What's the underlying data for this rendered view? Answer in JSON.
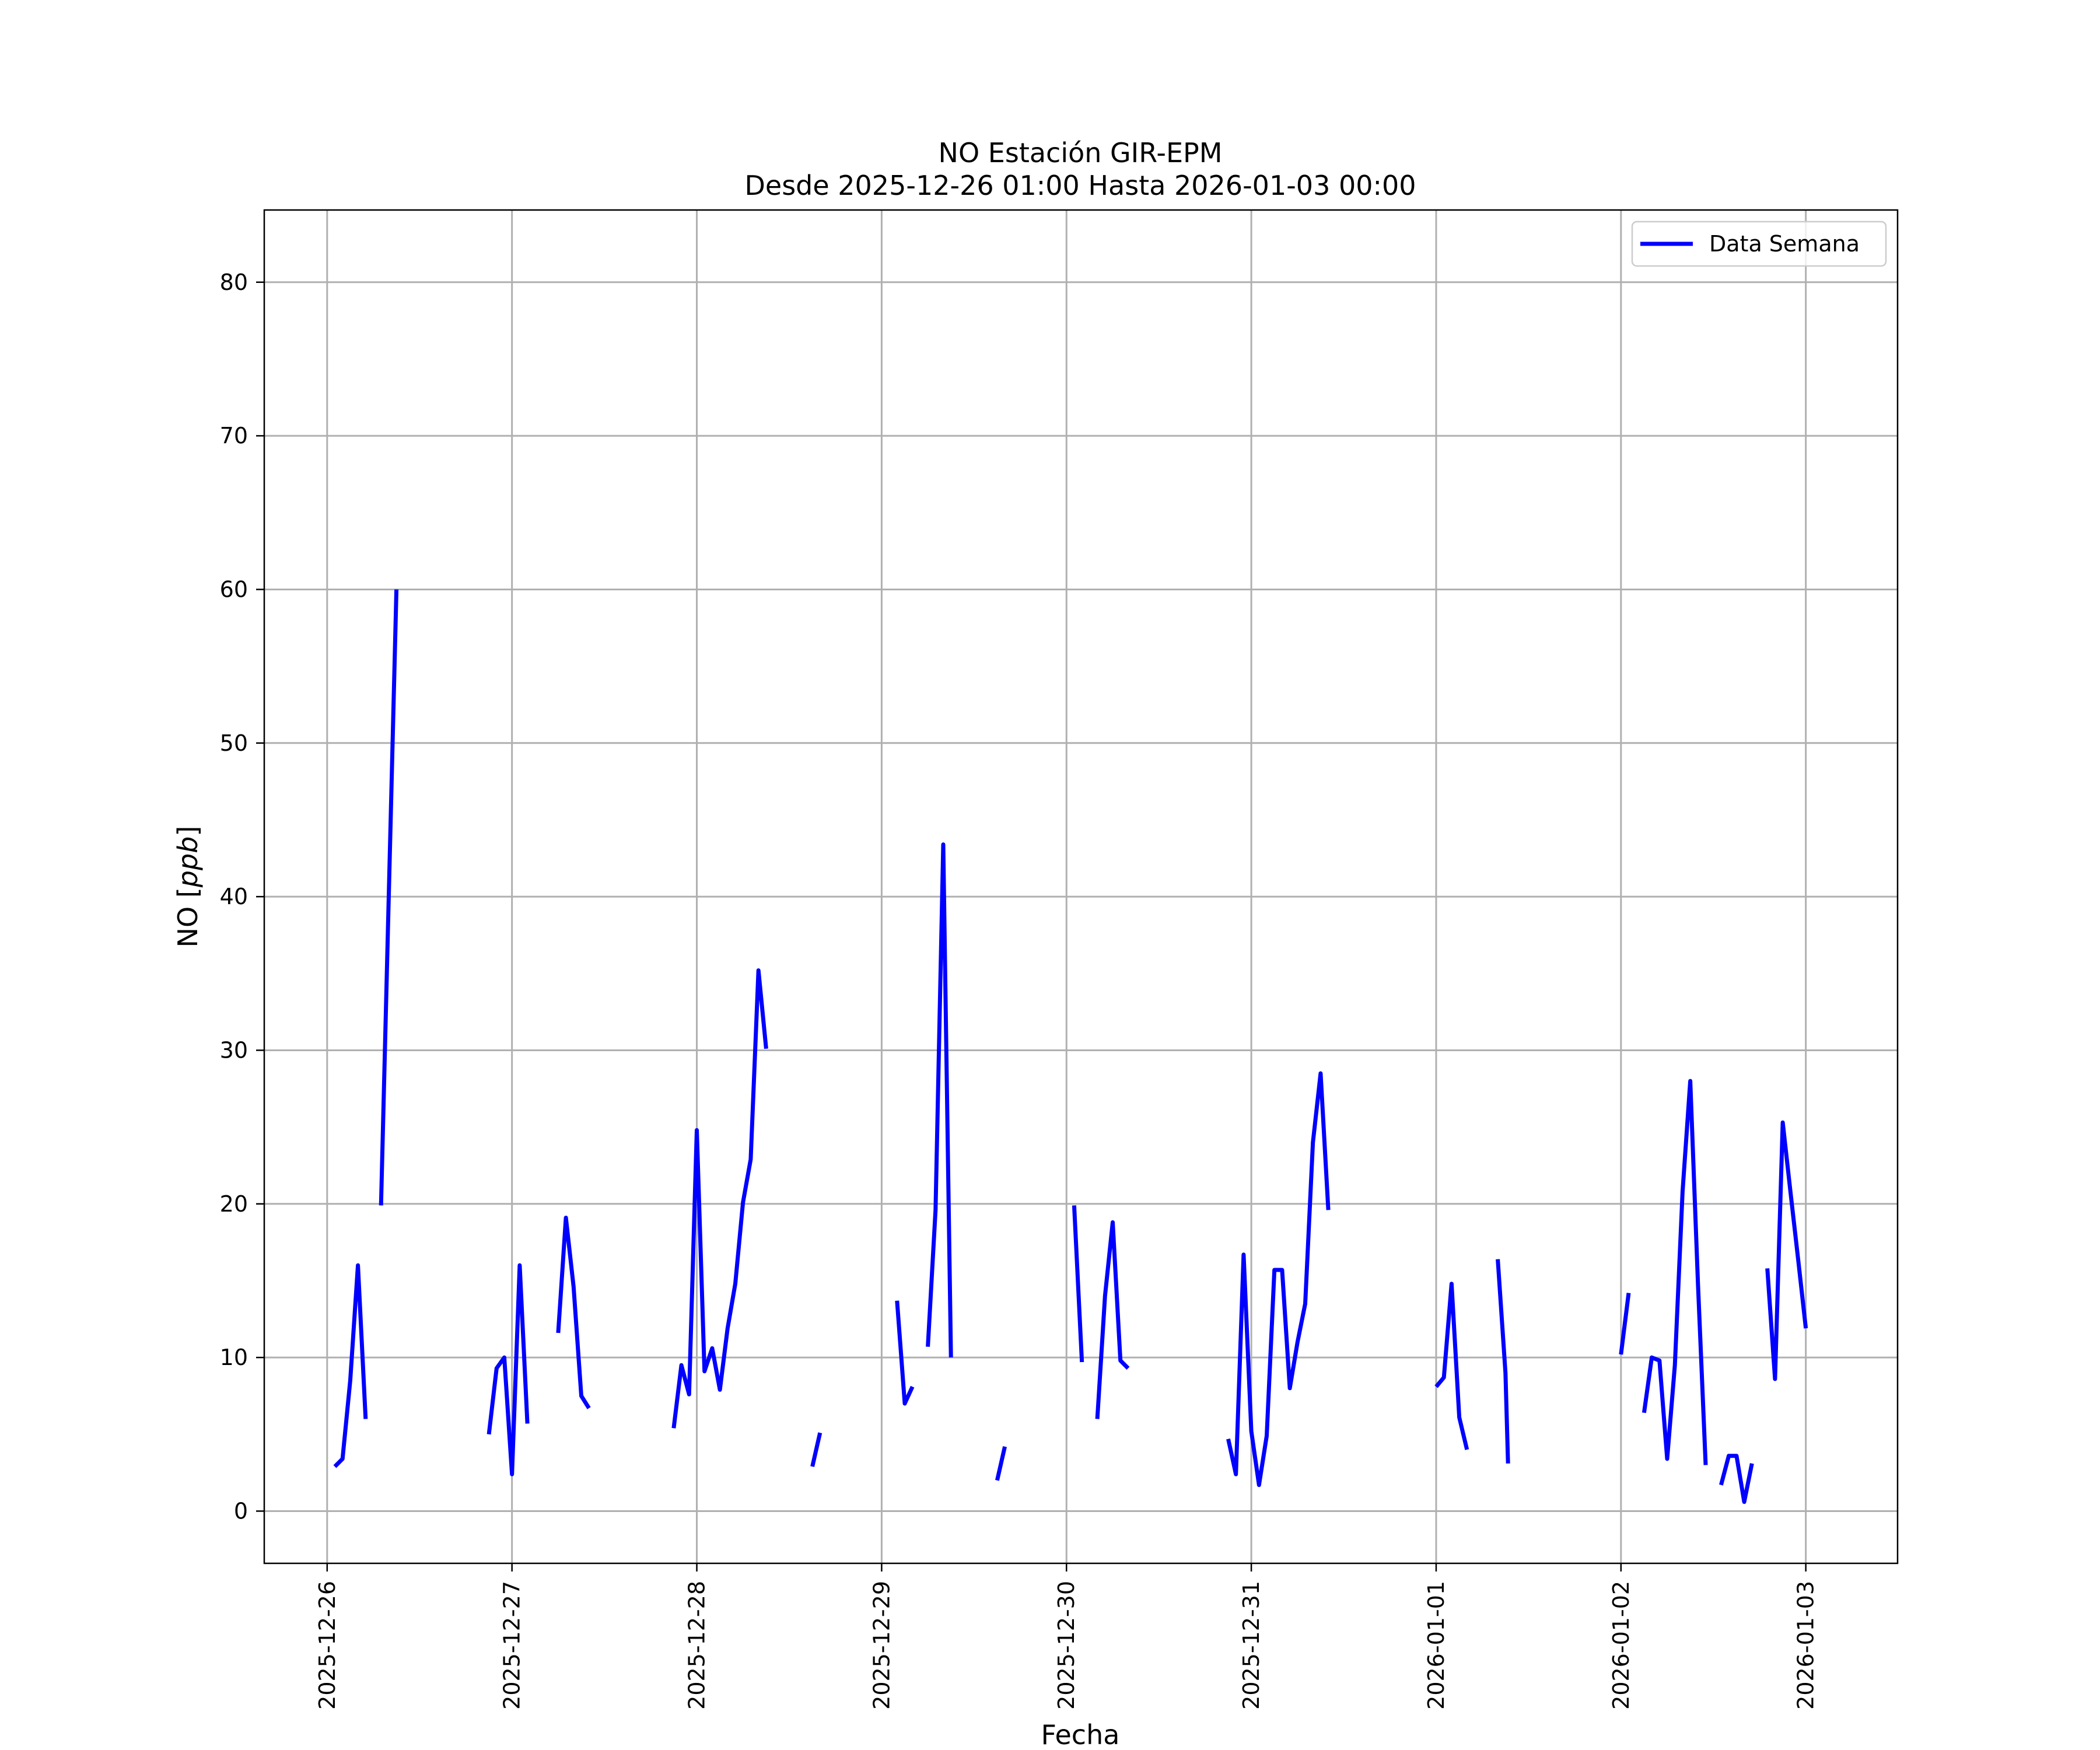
{
  "chart_data": {
    "type": "line",
    "title": "NO Estación GIR-EPM",
    "subtitle": "Desde 2025-12-26 01:00 Hasta 2026-01-03 00:00",
    "xlabel": "Fecha",
    "ylabel": "NO [ppb]",
    "ylabel_prefix": "NO [",
    "ylabel_unit": "ppb",
    "ylabel_suffix": "]",
    "x_start": "2025-12-26",
    "xlim": [
      "2025-12-25 15:50",
      "2026-01-03 11:55"
    ],
    "ylim": [
      -3.4,
      84.7
    ],
    "x_ticks": [
      "2025-12-26",
      "2025-12-27",
      "2025-12-28",
      "2025-12-29",
      "2025-12-30",
      "2025-12-31",
      "2026-01-01",
      "2026-01-02",
      "2026-01-03"
    ],
    "y_ticks": [
      0,
      10,
      20,
      30,
      40,
      50,
      60,
      70,
      80
    ],
    "grid": true,
    "legend": {
      "position": "top-right"
    },
    "colors": {
      "series": "#0000ff",
      "grid": "#b0b0b0",
      "frame": "#000000"
    },
    "series": [
      {
        "name": "Data Semana",
        "segments": [
          [
            [
              "2025-12-26 01:00",
              2.9
            ],
            [
              "2025-12-26 02:00",
              3.4
            ],
            [
              "2025-12-26 03:00",
              8.5
            ],
            [
              "2025-12-26 04:00",
              16.0
            ],
            [
              "2025-12-26 05:00",
              6.0
            ]
          ],
          [
            [
              "2025-12-26 07:00",
              19.9
            ],
            [
              "2025-12-26 09:00",
              60.0
            ]
          ],
          [
            [
              "2025-12-26 21:00",
              5.0
            ],
            [
              "2025-12-26 22:00",
              9.3
            ],
            [
              "2025-12-26 23:00",
              10.0
            ],
            [
              "2025-12-27 00:00",
              2.4
            ],
            [
              "2025-12-27 01:00",
              16.0
            ],
            [
              "2025-12-27 02:00",
              5.7
            ]
          ],
          [
            [
              "2025-12-27 06:00",
              11.6
            ],
            [
              "2025-12-27 07:00",
              19.1
            ],
            [
              "2025-12-27 08:00",
              14.6
            ],
            [
              "2025-12-27 09:00",
              7.5
            ],
            [
              "2025-12-27 10:00",
              6.7
            ]
          ],
          [
            [
              "2025-12-27 21:00",
              5.4
            ],
            [
              "2025-12-27 22:00",
              9.5
            ],
            [
              "2025-12-27 23:00",
              7.6
            ],
            [
              "2025-12-28 00:00",
              24.8
            ],
            [
              "2025-12-28 01:00",
              9.1
            ],
            [
              "2025-12-28 02:00",
              10.6
            ],
            [
              "2025-12-28 03:00",
              7.9
            ],
            [
              "2025-12-28 04:00",
              11.9
            ],
            [
              "2025-12-28 05:00",
              14.8
            ],
            [
              "2025-12-28 06:00",
              20.1
            ],
            [
              "2025-12-28 07:00",
              22.9
            ],
            [
              "2025-12-28 08:00",
              35.2
            ],
            [
              "2025-12-28 09:00",
              30.1
            ]
          ],
          [
            [
              "2025-12-28 15:00",
              2.9
            ],
            [
              "2025-12-28 16:00",
              5.1
            ]
          ],
          [
            [
              "2025-12-29 02:00",
              13.7
            ],
            [
              "2025-12-29 03:00",
              7.0
            ],
            [
              "2025-12-29 04:00",
              8.1
            ]
          ],
          [
            [
              "2025-12-29 06:00",
              10.7
            ],
            [
              "2025-12-29 07:00",
              19.6
            ],
            [
              "2025-12-29 08:00",
              43.4
            ],
            [
              "2025-12-29 09:00",
              10.0
            ]
          ],
          [
            [
              "2025-12-29 15:00",
              2.0
            ],
            [
              "2025-12-29 16:00",
              4.2
            ]
          ],
          [
            [
              "2025-12-30 01:00",
              19.9
            ],
            [
              "2025-12-30 02:00",
              9.7
            ]
          ],
          [
            [
              "2025-12-30 04:00",
              6.0
            ],
            [
              "2025-12-30 05:00",
              14.0
            ],
            [
              "2025-12-30 06:00",
              18.8
            ],
            [
              "2025-12-30 07:00",
              9.8
            ],
            [
              "2025-12-30 08:00",
              9.3
            ]
          ],
          [
            [
              "2025-12-30 21:00",
              4.7
            ],
            [
              "2025-12-30 22:00",
              2.4
            ],
            [
              "2025-12-30 23:00",
              16.7
            ],
            [
              "2025-12-31 00:00",
              5.2
            ],
            [
              "2025-12-31 01:00",
              1.7
            ],
            [
              "2025-12-31 02:00",
              4.9
            ],
            [
              "2025-12-31 03:00",
              15.7
            ],
            [
              "2025-12-31 04:00",
              15.7
            ],
            [
              "2025-12-31 05:00",
              8.0
            ],
            [
              "2025-12-31 06:00",
              11.0
            ],
            [
              "2025-12-31 07:00",
              13.5
            ],
            [
              "2025-12-31 08:00",
              24.0
            ],
            [
              "2025-12-31 09:00",
              28.5
            ],
            [
              "2025-12-31 10:00",
              19.6
            ]
          ],
          [
            [
              "2026-01-01 00:00",
              8.1
            ],
            [
              "2026-01-01 01:00",
              8.7
            ],
            [
              "2026-01-01 02:00",
              14.8
            ],
            [
              "2026-01-01 03:00",
              6.1
            ],
            [
              "2026-01-01 04:00",
              4.0
            ]
          ],
          [
            [
              "2026-01-01 08:00",
              16.4
            ],
            [
              "2026-01-01 09:00",
              9.0
            ],
            [
              "2026-01-01 09:20",
              3.1
            ]
          ],
          [
            [
              "2026-01-02 00:00",
              10.2
            ],
            [
              "2026-01-02 01:00",
              14.2
            ]
          ],
          [
            [
              "2026-01-02 03:00",
              6.4
            ],
            [
              "2026-01-02 04:00",
              10.0
            ],
            [
              "2026-01-02 05:00",
              9.8
            ],
            [
              "2026-01-02 06:00",
              3.4
            ],
            [
              "2026-01-02 07:00",
              9.5
            ],
            [
              "2026-01-02 08:00",
              20.8
            ],
            [
              "2026-01-02 09:00",
              28.0
            ],
            [
              "2026-01-02 10:00",
              14.8
            ],
            [
              "2026-01-02 11:00",
              3.0
            ]
          ],
          [
            [
              "2026-01-02 13:00",
              1.7
            ],
            [
              "2026-01-02 14:00",
              3.6
            ],
            [
              "2026-01-02 15:00",
              3.6
            ],
            [
              "2026-01-02 16:00",
              0.6
            ],
            [
              "2026-01-02 17:00",
              3.1
            ]
          ],
          [
            [
              "2026-01-02 19:00",
              15.8
            ],
            [
              "2026-01-02 20:00",
              8.6
            ],
            [
              "2026-01-02 21:00",
              25.3
            ],
            [
              "2026-01-02 22:00",
              20.8
            ],
            [
              "2026-01-02 23:00",
              16.4
            ],
            [
              "2026-01-03 00:00",
              11.9
            ]
          ]
        ]
      }
    ]
  }
}
